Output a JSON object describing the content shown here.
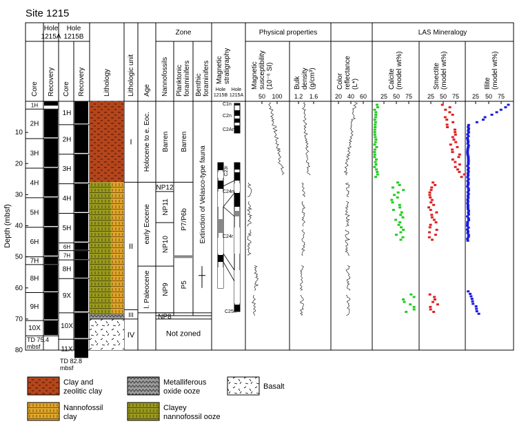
{
  "title": "Site 1215",
  "headers": {
    "hole_a": [
      "Hole",
      "1215A"
    ],
    "hole_b": [
      "Hole",
      "1215B"
    ],
    "core": "Core",
    "recovery": "Recovery",
    "lithology": "Lithology",
    "lith_unit": "Lithologic unit",
    "age": "Age",
    "zone": "Zone",
    "nannofossils": "Nannofossils",
    "planktonic": [
      "Planktonic",
      "foraminifers"
    ],
    "benthic": [
      "Benthic",
      "foraminifers"
    ],
    "magstrat": [
      "Magnetic",
      "stratigraphy"
    ],
    "magstrat_holes": [
      "Hole",
      "1215B",
      "Hole",
      "1215A"
    ],
    "physical": "Physical properties",
    "mag_sus": [
      "Magnetic",
      "susceptibility",
      "(10⁻⁶ SI)"
    ],
    "bulk_density": [
      "Bulk",
      "density",
      "(g/cm³)"
    ],
    "color_reflectance": [
      "Color",
      "reflectance",
      "(L*)"
    ],
    "las": "LAS Mineralogy",
    "calcite": [
      "Calcite",
      "(model wt%)"
    ],
    "smectite": [
      "Smectite",
      "(model wt%)"
    ],
    "illite": [
      "Illite",
      "(model wt%)"
    ]
  },
  "depth_axis": {
    "label": "Depth (mbsf)",
    "ticks": [
      "10",
      "20",
      "30",
      "40",
      "50",
      "60",
      "70",
      "80"
    ]
  },
  "ticks": {
    "mag_sus": [
      "50",
      "100"
    ],
    "bulk_density": [
      "1.2",
      "1.6"
    ],
    "color_reflectance": [
      "20",
      "40",
      "60"
    ],
    "calcite": [
      "25",
      "50",
      "75"
    ],
    "smectite": [
      "25",
      "50",
      "75"
    ],
    "illite": [
      "25",
      "50",
      "75"
    ]
  },
  "cores_a": [
    "1H",
    "2H",
    "3H",
    "4H",
    "5H",
    "6H",
    "7H",
    "8H",
    "9H",
    "10X"
  ],
  "cores_b": [
    "1H",
    "2H",
    "3H",
    "4H",
    "5H",
    "6H",
    "7H",
    "8H",
    "9X",
    "10X",
    "11X"
  ],
  "td_a": [
    "TD 75.4",
    "mbsf"
  ],
  "td_b": [
    "TD 82.8",
    "mbsf"
  ],
  "units": [
    "I",
    "II",
    "III",
    "IV"
  ],
  "ages": [
    "Holocene to e. Eoc.",
    "early Eocene",
    "l. Paleocene"
  ],
  "nanno_zones": [
    "Barren",
    "NP12",
    "NP11",
    "NP10",
    "NP9",
    "NP8"
  ],
  "plank_zones": [
    "Barren",
    "P7/P6b",
    "P5"
  ],
  "benthic_text": "Extinction of Velasco-type fauna",
  "not_zoned": "Not zoned",
  "chrons": [
    "C1n",
    "C2n",
    "C2An",
    "C23r",
    "C24n",
    "C24r",
    "C25n"
  ],
  "legend": [
    "Clay and zeolitic clay",
    "Metalliferous oxide ooze",
    "Basalt",
    "Nannofossil clay",
    "Clayey nannofossil ooze"
  ],
  "colors": {
    "clay": "#b5451b",
    "nanno_clay": "#e0a52a",
    "clayey_ooze": "#9a9a1e",
    "calcite": "#22cc22",
    "smectite": "#e02020",
    "illite": "#1a1ae0"
  }
}
